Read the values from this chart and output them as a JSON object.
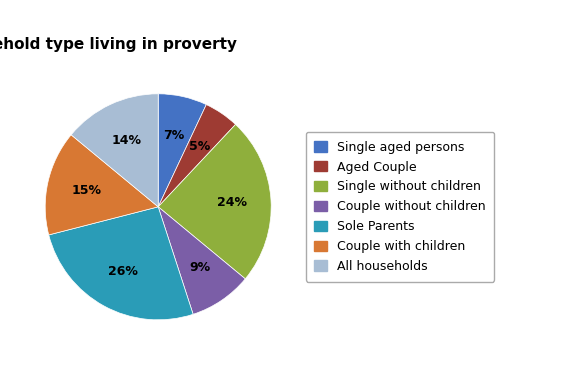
{
  "labels": [
    "Single aged persons",
    "Aged Couple",
    "Single without children",
    "Couple without children",
    "Sole Parents",
    "Couple with children",
    "All households"
  ],
  "values": [
    7,
    5,
    24,
    9,
    26,
    15,
    14
  ],
  "colors": [
    "#4472C4",
    "#9E3B33",
    "#8FAF3C",
    "#7B5EA7",
    "#2A9CB7",
    "#D87833",
    "#A8BDD4"
  ],
  "pct_labels": [
    "7%",
    "5%",
    "24%",
    "9%",
    "26%",
    "15%",
    "14%"
  ],
  "title_fontsize": 11,
  "label_fontsize": 9,
  "legend_fontsize": 9,
  "background_color": "#ffffff"
}
